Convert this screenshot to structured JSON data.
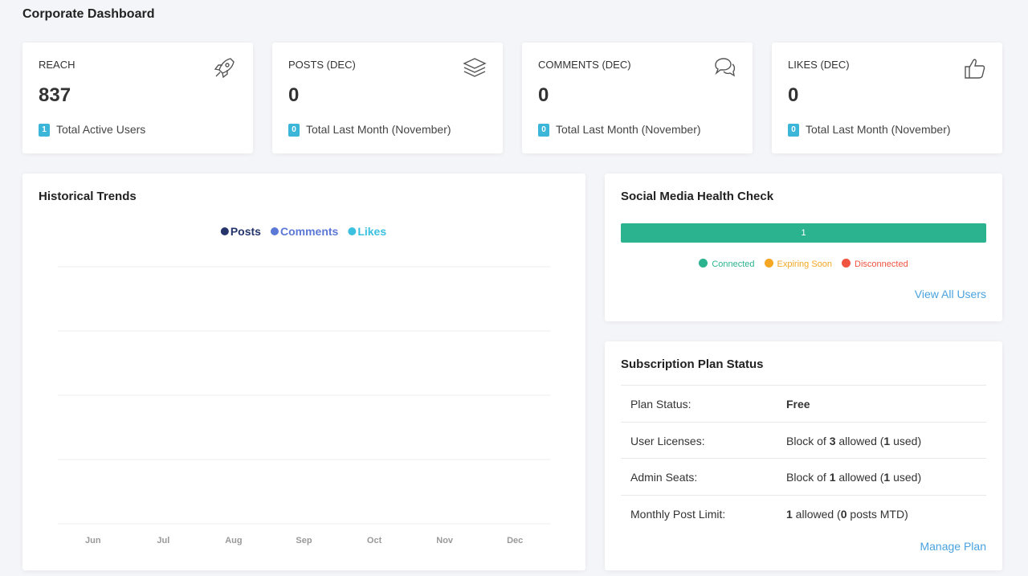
{
  "header": {
    "title": "Corporate Dashboard"
  },
  "stats": [
    {
      "label": "REACH",
      "value": "837",
      "badge": "1",
      "note": "Total Active Users"
    },
    {
      "label": "POSTS (DEC)",
      "value": "0",
      "badge": "0",
      "note": "Total Last Month (November)"
    },
    {
      "label": "COMMENTS (DEC)",
      "value": "0",
      "badge": "0",
      "note": "Total Last Month (November)"
    },
    {
      "label": "LIKES (DEC)",
      "value": "0",
      "badge": "0",
      "note": "Total Last Month (November)"
    }
  ],
  "chart_data": {
    "type": "line",
    "title": "Historical Trends",
    "categories": [
      "Jun",
      "Jul",
      "Aug",
      "Sep",
      "Oct",
      "Nov",
      "Dec"
    ],
    "series": [
      {
        "name": "Posts",
        "color": "#25356b"
      },
      {
        "name": "Comments",
        "color": "#5b78d6"
      },
      {
        "name": "Likes",
        "color": "#3bc0e0"
      }
    ],
    "grid": true
  },
  "health": {
    "title": "Social Media Health Check",
    "bar_label": "1",
    "legend": [
      {
        "name": "Connected",
        "color": "#2bb38f"
      },
      {
        "name": "Expiring Soon",
        "color": "#f5a623"
      },
      {
        "name": "Disconnected",
        "color": "#f0533f"
      }
    ],
    "link": "View All Users"
  },
  "subscription": {
    "title": "Subscription Plan Status",
    "rows": [
      {
        "label": "Plan Status:",
        "value": [
          {
            "text": "Free",
            "bold": true
          }
        ]
      },
      {
        "label": "User Licenses:",
        "value": [
          {
            "text": "Block of "
          },
          {
            "text": "3",
            "bold": true
          },
          {
            "text": " allowed ("
          },
          {
            "text": "1",
            "bold": true
          },
          {
            "text": " used)"
          }
        ]
      },
      {
        "label": "Admin Seats:",
        "value": [
          {
            "text": "Block of "
          },
          {
            "text": "1",
            "bold": true
          },
          {
            "text": " allowed ("
          },
          {
            "text": "1",
            "bold": true
          },
          {
            "text": " used)"
          }
        ]
      },
      {
        "label": "Monthly Post Limit:",
        "value": [
          {
            "text": "1",
            "bold": true
          },
          {
            "text": " allowed ("
          },
          {
            "text": "0",
            "bold": true
          },
          {
            "text": " posts MTD)"
          }
        ]
      }
    ],
    "link": "Manage Plan"
  }
}
